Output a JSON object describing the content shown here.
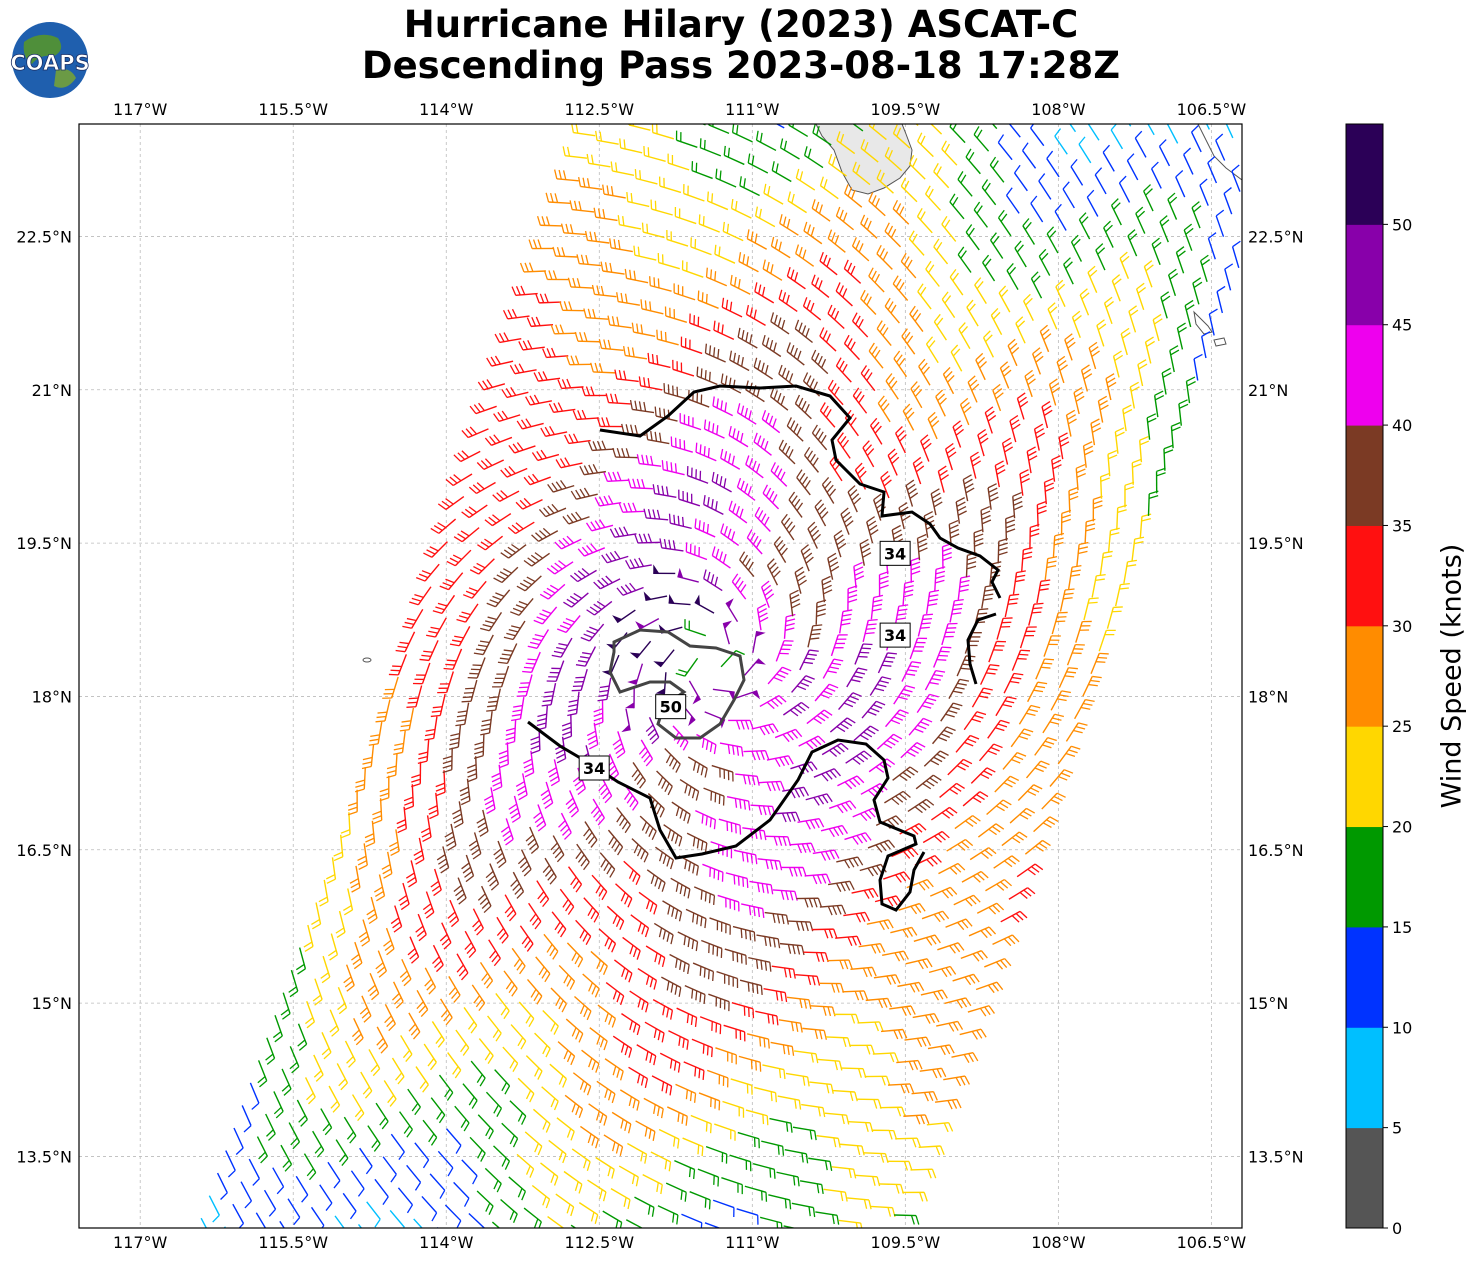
{
  "title": {
    "line1": "Hurricane Hilary (2023) ASCAT-C",
    "line2": "Descending Pass 2023-08-18 17:28Z"
  },
  "logo": {
    "text": "COAPS",
    "icon": "globe-icon"
  },
  "map": {
    "lon_range": [
      -117.6,
      -106.2
    ],
    "lat_range": [
      12.8,
      23.6
    ],
    "x_ticks": [
      {
        "value": -117.0,
        "label": "117°W"
      },
      {
        "value": -115.5,
        "label": "115.5°W"
      },
      {
        "value": -114.0,
        "label": "114°W"
      },
      {
        "value": -112.5,
        "label": "112.5°W"
      },
      {
        "value": -111.0,
        "label": "111°W"
      },
      {
        "value": -109.5,
        "label": "109.5°W"
      },
      {
        "value": -108.0,
        "label": "108°W"
      },
      {
        "value": -106.5,
        "label": "106.5°W"
      }
    ],
    "y_ticks": [
      {
        "value": 22.5,
        "label": "22.5°N"
      },
      {
        "value": 21.0,
        "label": "21°N"
      },
      {
        "value": 19.5,
        "label": "19.5°N"
      },
      {
        "value": 18.0,
        "label": "18°N"
      },
      {
        "value": 16.5,
        "label": "16.5°N"
      },
      {
        "value": 15.0,
        "label": "15°N"
      },
      {
        "value": 13.5,
        "label": "13.5°N"
      }
    ],
    "gridlines": true,
    "storm_center": [
      -111.45,
      18.35
    ],
    "contour_labels": [
      {
        "label": "34",
        "lon": -109.6,
        "lat": 19.4
      },
      {
        "label": "34",
        "lon": -109.6,
        "lat": 18.6
      },
      {
        "label": "34",
        "lon": -112.55,
        "lat": 17.3
      },
      {
        "label": "50",
        "lon": -111.8,
        "lat": 17.9
      }
    ]
  },
  "colorbar": {
    "label": "Wind Speed (knots)",
    "ticks": [
      "0",
      "5",
      "10",
      "15",
      "20",
      "25",
      "30",
      "35",
      "40",
      "45",
      "50"
    ],
    "colors": [
      "#555555",
      "#00bfff",
      "#0033ff",
      "#009900",
      "#ffd700",
      "#ff8c00",
      "#ff1010",
      "#7b3a24",
      "#ee00ee",
      "#8800aa",
      "#2b0057"
    ]
  }
}
